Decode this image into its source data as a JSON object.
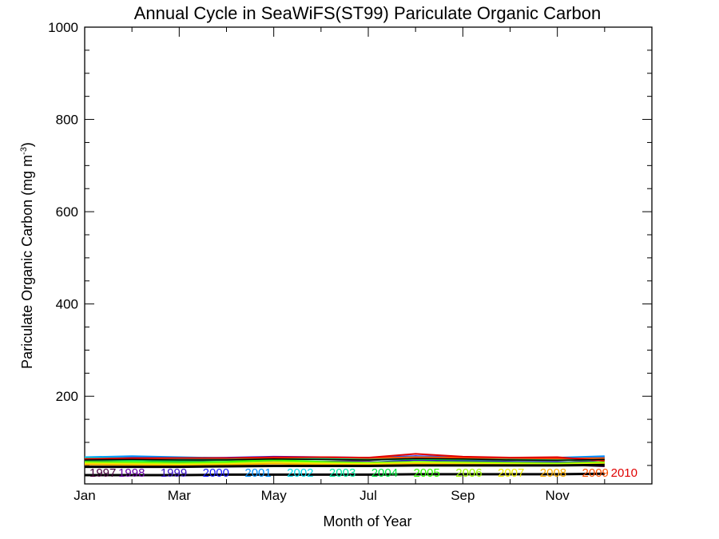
{
  "chart_data": {
    "type": "line",
    "title": "Annual Cycle in SeaWiFS(ST99) Pariculate Organic Carbon",
    "xlabel": "Month of Year",
    "ylabel_main": "Pariculate Organic Carbon (mg m",
    "ylabel_sup": "-3",
    "ylabel_close": ")",
    "xlim": [
      1,
      13
    ],
    "ylim": [
      10,
      1000
    ],
    "x_ticks": [
      1,
      3,
      5,
      7,
      9,
      11
    ],
    "x_tick_labels": [
      "Jan",
      "Mar",
      "May",
      "Jul",
      "Sep",
      "Nov"
    ],
    "y_ticks": [
      200,
      400,
      600,
      800,
      1000
    ],
    "y_tick_labels": [
      "200",
      "400",
      "600",
      "800",
      "1000"
    ],
    "y_minor_step": 50,
    "x": [
      1,
      2,
      3,
      4,
      5,
      6,
      7,
      8,
      9,
      10,
      11,
      12
    ],
    "series": [
      {
        "name": "1997",
        "color": "#4b0040",
        "values": [
          null,
          null,
          null,
          null,
          null,
          null,
          null,
          null,
          58,
          55,
          52,
          48
        ]
      },
      {
        "name": "1998",
        "color": "#6a00a8",
        "values": [
          60,
          62,
          58,
          57,
          60,
          58,
          60,
          70,
          62,
          58,
          55,
          62
        ]
      },
      {
        "name": "1999",
        "color": "#3a10c8",
        "values": [
          52,
          53,
          50,
          52,
          55,
          54,
          56,
          62,
          60,
          58,
          57,
          55
        ]
      },
      {
        "name": "2000",
        "color": "#1a1aff",
        "values": [
          66,
          68,
          66,
          67,
          69,
          68,
          67,
          70,
          68,
          66,
          65,
          68
        ]
      },
      {
        "name": "2001",
        "color": "#0090ff",
        "values": [
          68,
          70,
          68,
          66,
          68,
          67,
          66,
          69,
          67,
          66,
          67,
          70
        ]
      },
      {
        "name": "2002",
        "color": "#00d8e8",
        "values": [
          67,
          66,
          64,
          65,
          67,
          66,
          65,
          68,
          66,
          65,
          64,
          66
        ]
      },
      {
        "name": "2003",
        "color": "#00e8a0",
        "values": [
          65,
          64,
          63,
          64,
          66,
          65,
          64,
          66,
          65,
          64,
          63,
          64
        ]
      },
      {
        "name": "2004",
        "color": "#00e840",
        "values": [
          62,
          61,
          60,
          62,
          64,
          63,
          62,
          64,
          63,
          62,
          61,
          62
        ]
      },
      {
        "name": "2005",
        "color": "#30ff00",
        "values": [
          58,
          57,
          56,
          58,
          62,
          58,
          56,
          58,
          57,
          56,
          55,
          57
        ]
      },
      {
        "name": "2006",
        "color": "#a0ff00",
        "values": [
          56,
          55,
          54,
          55,
          58,
          56,
          55,
          57,
          56,
          55,
          54,
          56
        ]
      },
      {
        "name": "2007",
        "color": "#f0f000",
        "values": [
          54,
          53,
          52,
          53,
          56,
          54,
          53,
          55,
          54,
          53,
          52,
          54
        ]
      },
      {
        "name": "2008",
        "color": "#ffb000",
        "values": [
          52,
          51,
          50,
          51,
          54,
          52,
          51,
          53,
          52,
          51,
          50,
          52
        ]
      },
      {
        "name": "2009",
        "color": "#ff5000",
        "values": [
          64,
          65,
          66,
          66,
          67,
          68,
          66,
          68,
          67,
          66,
          65,
          66
        ]
      },
      {
        "name": "2010",
        "color": "#e00000",
        "values": [
          64,
          66,
          66,
          66,
          68,
          68,
          67,
          75,
          69,
          67,
          68,
          60
        ]
      }
    ],
    "reference_lines": {
      "color": "#000000",
      "mean": [
        62,
        63,
        62,
        62,
        64,
        63,
        62,
        65,
        64,
        62,
        61,
        63
      ],
      "upper": [
        47,
        47,
        47,
        48,
        49,
        49,
        49,
        50,
        50,
        50,
        50,
        51
      ],
      "lower": [
        29,
        29,
        29,
        30,
        30,
        30,
        30,
        31,
        31,
        31,
        31,
        32
      ]
    },
    "grid": false,
    "legend_placement": "inside-bottom"
  }
}
